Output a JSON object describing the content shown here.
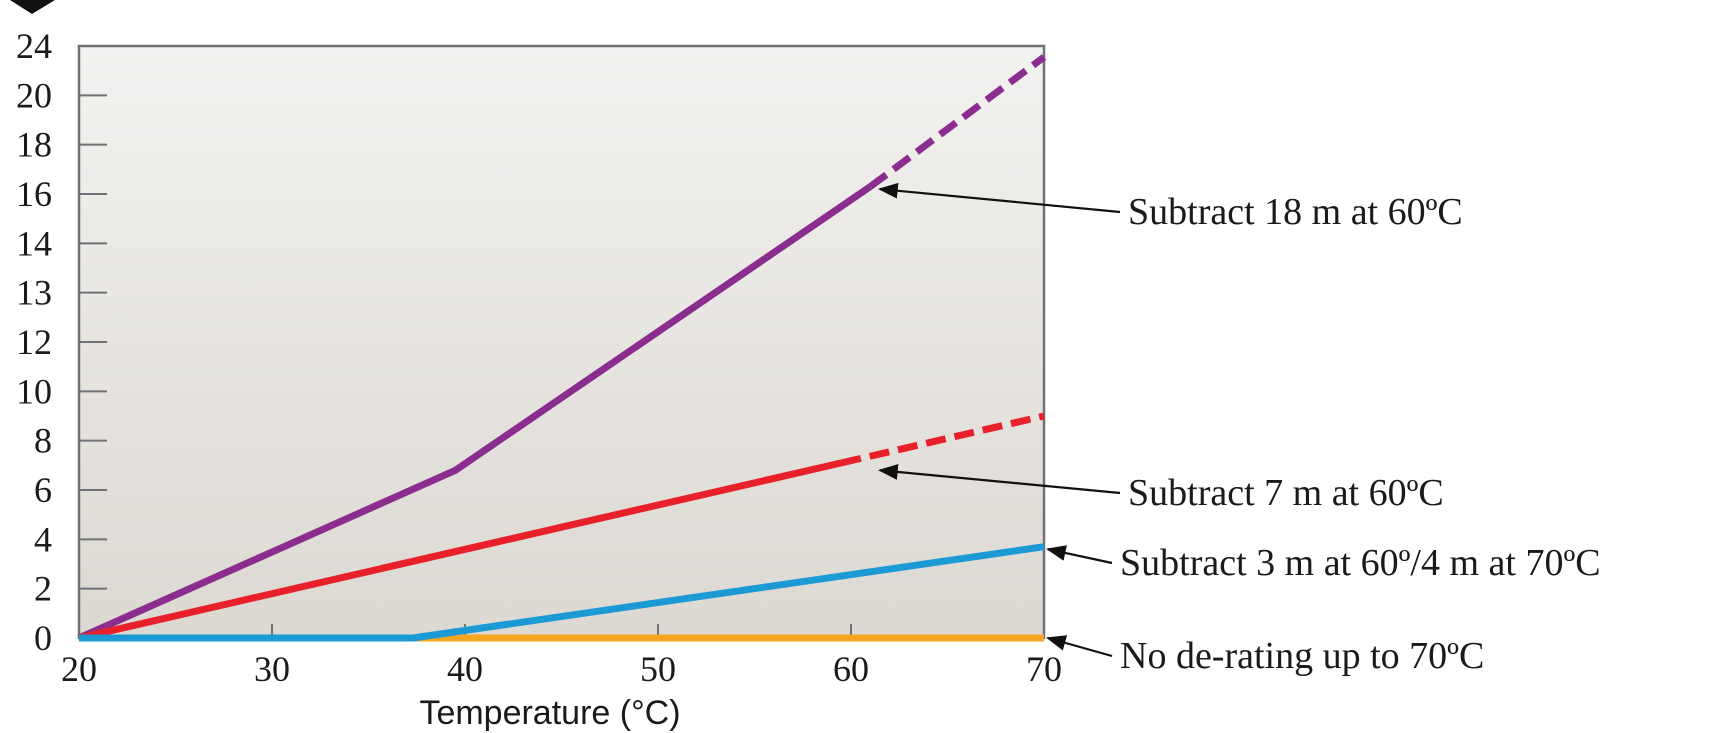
{
  "chart_data": {
    "type": "line",
    "xlabel": "Temperature (°C)",
    "ylabel": "",
    "xlim": [
      20,
      70
    ],
    "x_ticks": [
      "20",
      "30",
      "40",
      "50",
      "60",
      "70"
    ],
    "y_tick_labels": [
      "0",
      "2",
      "4",
      "6",
      "8",
      "10",
      "12",
      "13",
      "14",
      "16",
      "18",
      "20",
      "24"
    ],
    "grid": false,
    "series": [
      {
        "color": "#8b2d8e",
        "solid": [
          [
            20,
            0
          ],
          [
            39.5,
            6.8
          ],
          [
            61,
            16.3
          ]
        ],
        "dashed": [
          [
            61,
            16.3
          ],
          [
            70,
            23.1
          ]
        ]
      },
      {
        "color": "#e8202a",
        "solid": [
          [
            20,
            0
          ],
          [
            59.5,
            7.1
          ]
        ],
        "dashed": [
          [
            59.5,
            7.1
          ],
          [
            70,
            9.0
          ]
        ]
      },
      {
        "color": "#1c9ad6",
        "solid": [
          [
            20,
            0
          ],
          [
            37.3,
            0
          ],
          [
            70,
            3.7
          ]
        ],
        "dashed": []
      },
      {
        "color": "#f5a623",
        "solid": [
          [
            37.3,
            0
          ],
          [
            70,
            0
          ]
        ],
        "dashed": []
      }
    ],
    "annotations": [
      {
        "text": "Subtract 18 m at 60ºC",
        "target": [
          61.5,
          16.2
        ]
      },
      {
        "text": "Subtract 7 m at 60ºC",
        "target": [
          61.5,
          6.8
        ]
      },
      {
        "text": "Subtract 3 m at 60º/4 m at 70ºC",
        "target": [
          70.2,
          3.6
        ]
      },
      {
        "text": "No de-rating up to 70ºC",
        "target": [
          70.2,
          0
        ]
      }
    ]
  }
}
